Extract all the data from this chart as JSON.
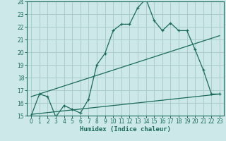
{
  "xlabel": "Humidex (Indice chaleur)",
  "bg_color": "#cce8e8",
  "grid_color": "#aacccc",
  "line_color": "#1a6b5a",
  "xlim": [
    -0.5,
    23.5
  ],
  "ylim": [
    15,
    24
  ],
  "xticks": [
    0,
    1,
    2,
    3,
    4,
    5,
    6,
    7,
    8,
    9,
    10,
    11,
    12,
    13,
    14,
    15,
    16,
    17,
    18,
    19,
    20,
    21,
    22,
    23
  ],
  "yticks": [
    15,
    16,
    17,
    18,
    19,
    20,
    21,
    22,
    23,
    24
  ],
  "curve1_x": [
    0,
    1,
    2,
    3,
    4,
    5,
    6,
    7,
    8,
    9,
    10,
    11,
    12,
    13,
    14,
    15,
    16,
    17,
    18,
    19,
    20,
    21,
    22,
    23
  ],
  "curve1_y": [
    15.0,
    16.7,
    16.5,
    14.9,
    15.8,
    15.5,
    15.2,
    16.3,
    19.0,
    19.9,
    21.7,
    22.2,
    22.2,
    23.5,
    24.2,
    22.5,
    21.7,
    22.3,
    21.7,
    21.7,
    20.2,
    18.6,
    16.7,
    16.7
  ],
  "curve2_x": [
    0,
    23
  ],
  "curve2_y": [
    16.5,
    21.3
  ],
  "curve3_x": [
    0,
    23
  ],
  "curve3_y": [
    15.1,
    16.7
  ],
  "tick_fontsize": 5.5,
  "label_fontsize": 6.5
}
